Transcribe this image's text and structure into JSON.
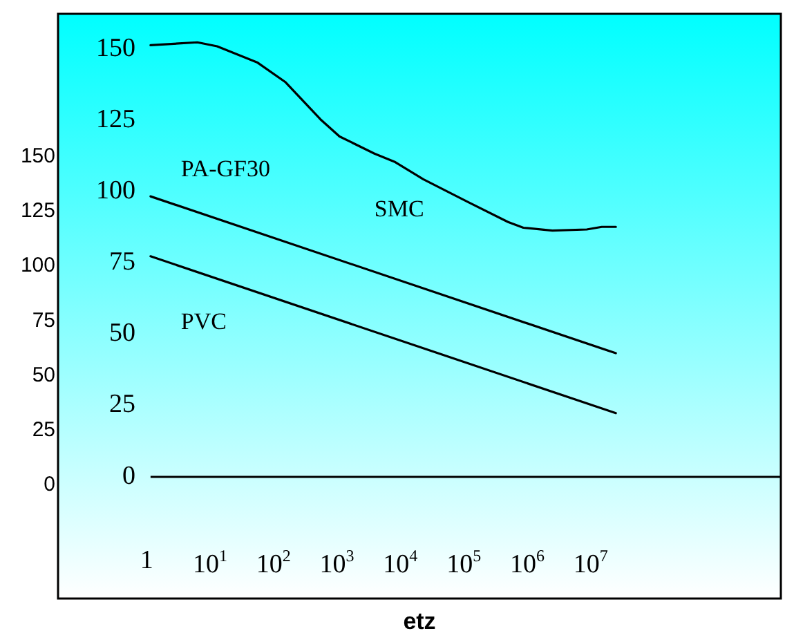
{
  "chart_data": {
    "type": "line",
    "xlabel": "etz",
    "log": "x",
    "xlim": [
      0.04,
      10000000000
    ],
    "xticks": [
      {
        "value": 1,
        "label": "1"
      },
      {
        "value": 10,
        "label": "10$^{1}$"
      },
      {
        "value": 100,
        "label": "10$^{2}$"
      },
      {
        "value": 1000,
        "label": "10$^{3}$"
      },
      {
        "value": 10000,
        "label": "10$^{4}$"
      },
      {
        "value": 100000,
        "label": "10$^{5}$"
      },
      {
        "value": 1000000,
        "label": "10$^{6}$"
      },
      {
        "value": 10000000,
        "label": "10$^{7}$"
      }
    ],
    "ylim": [
      -43,
      162
    ],
    "yticks": [
      0,
      25,
      50,
      75,
      100,
      125,
      150
    ],
    "y2lim": [
      -52,
      215
    ],
    "y2ticks": [
      0,
      25,
      50,
      75,
      100,
      125,
      150
    ],
    "series": [
      {
        "name": "SMC",
        "color": "#000000",
        "x": [
          1.15,
          6.3,
          12.9,
          55,
          155,
          550,
          1100,
          3900,
          8300,
          23000,
          117000,
          500000,
          870000,
          2500000,
          8700000,
          15000000,
          25000000
        ],
        "values": [
          151,
          152,
          150.6,
          145,
          138,
          125,
          119,
          113,
          110,
          104,
          96,
          89,
          87,
          86,
          86.4,
          87.3,
          87.3
        ]
      },
      {
        "name": "PA-GF30",
        "color": "#000000",
        "x": [
          1.15,
          25000000
        ],
        "values": [
          98,
          43
        ]
      },
      {
        "name": "PVC",
        "color": "#000000",
        "x": [
          1.15,
          25000000
        ],
        "values": [
          77,
          22
        ]
      }
    ],
    "ref_lines": [
      {
        "axis": "y",
        "value": 0,
        "color": "#000000"
      }
    ],
    "grid": false,
    "legend": false,
    "marker": "none",
    "line_style": "solid"
  }
}
